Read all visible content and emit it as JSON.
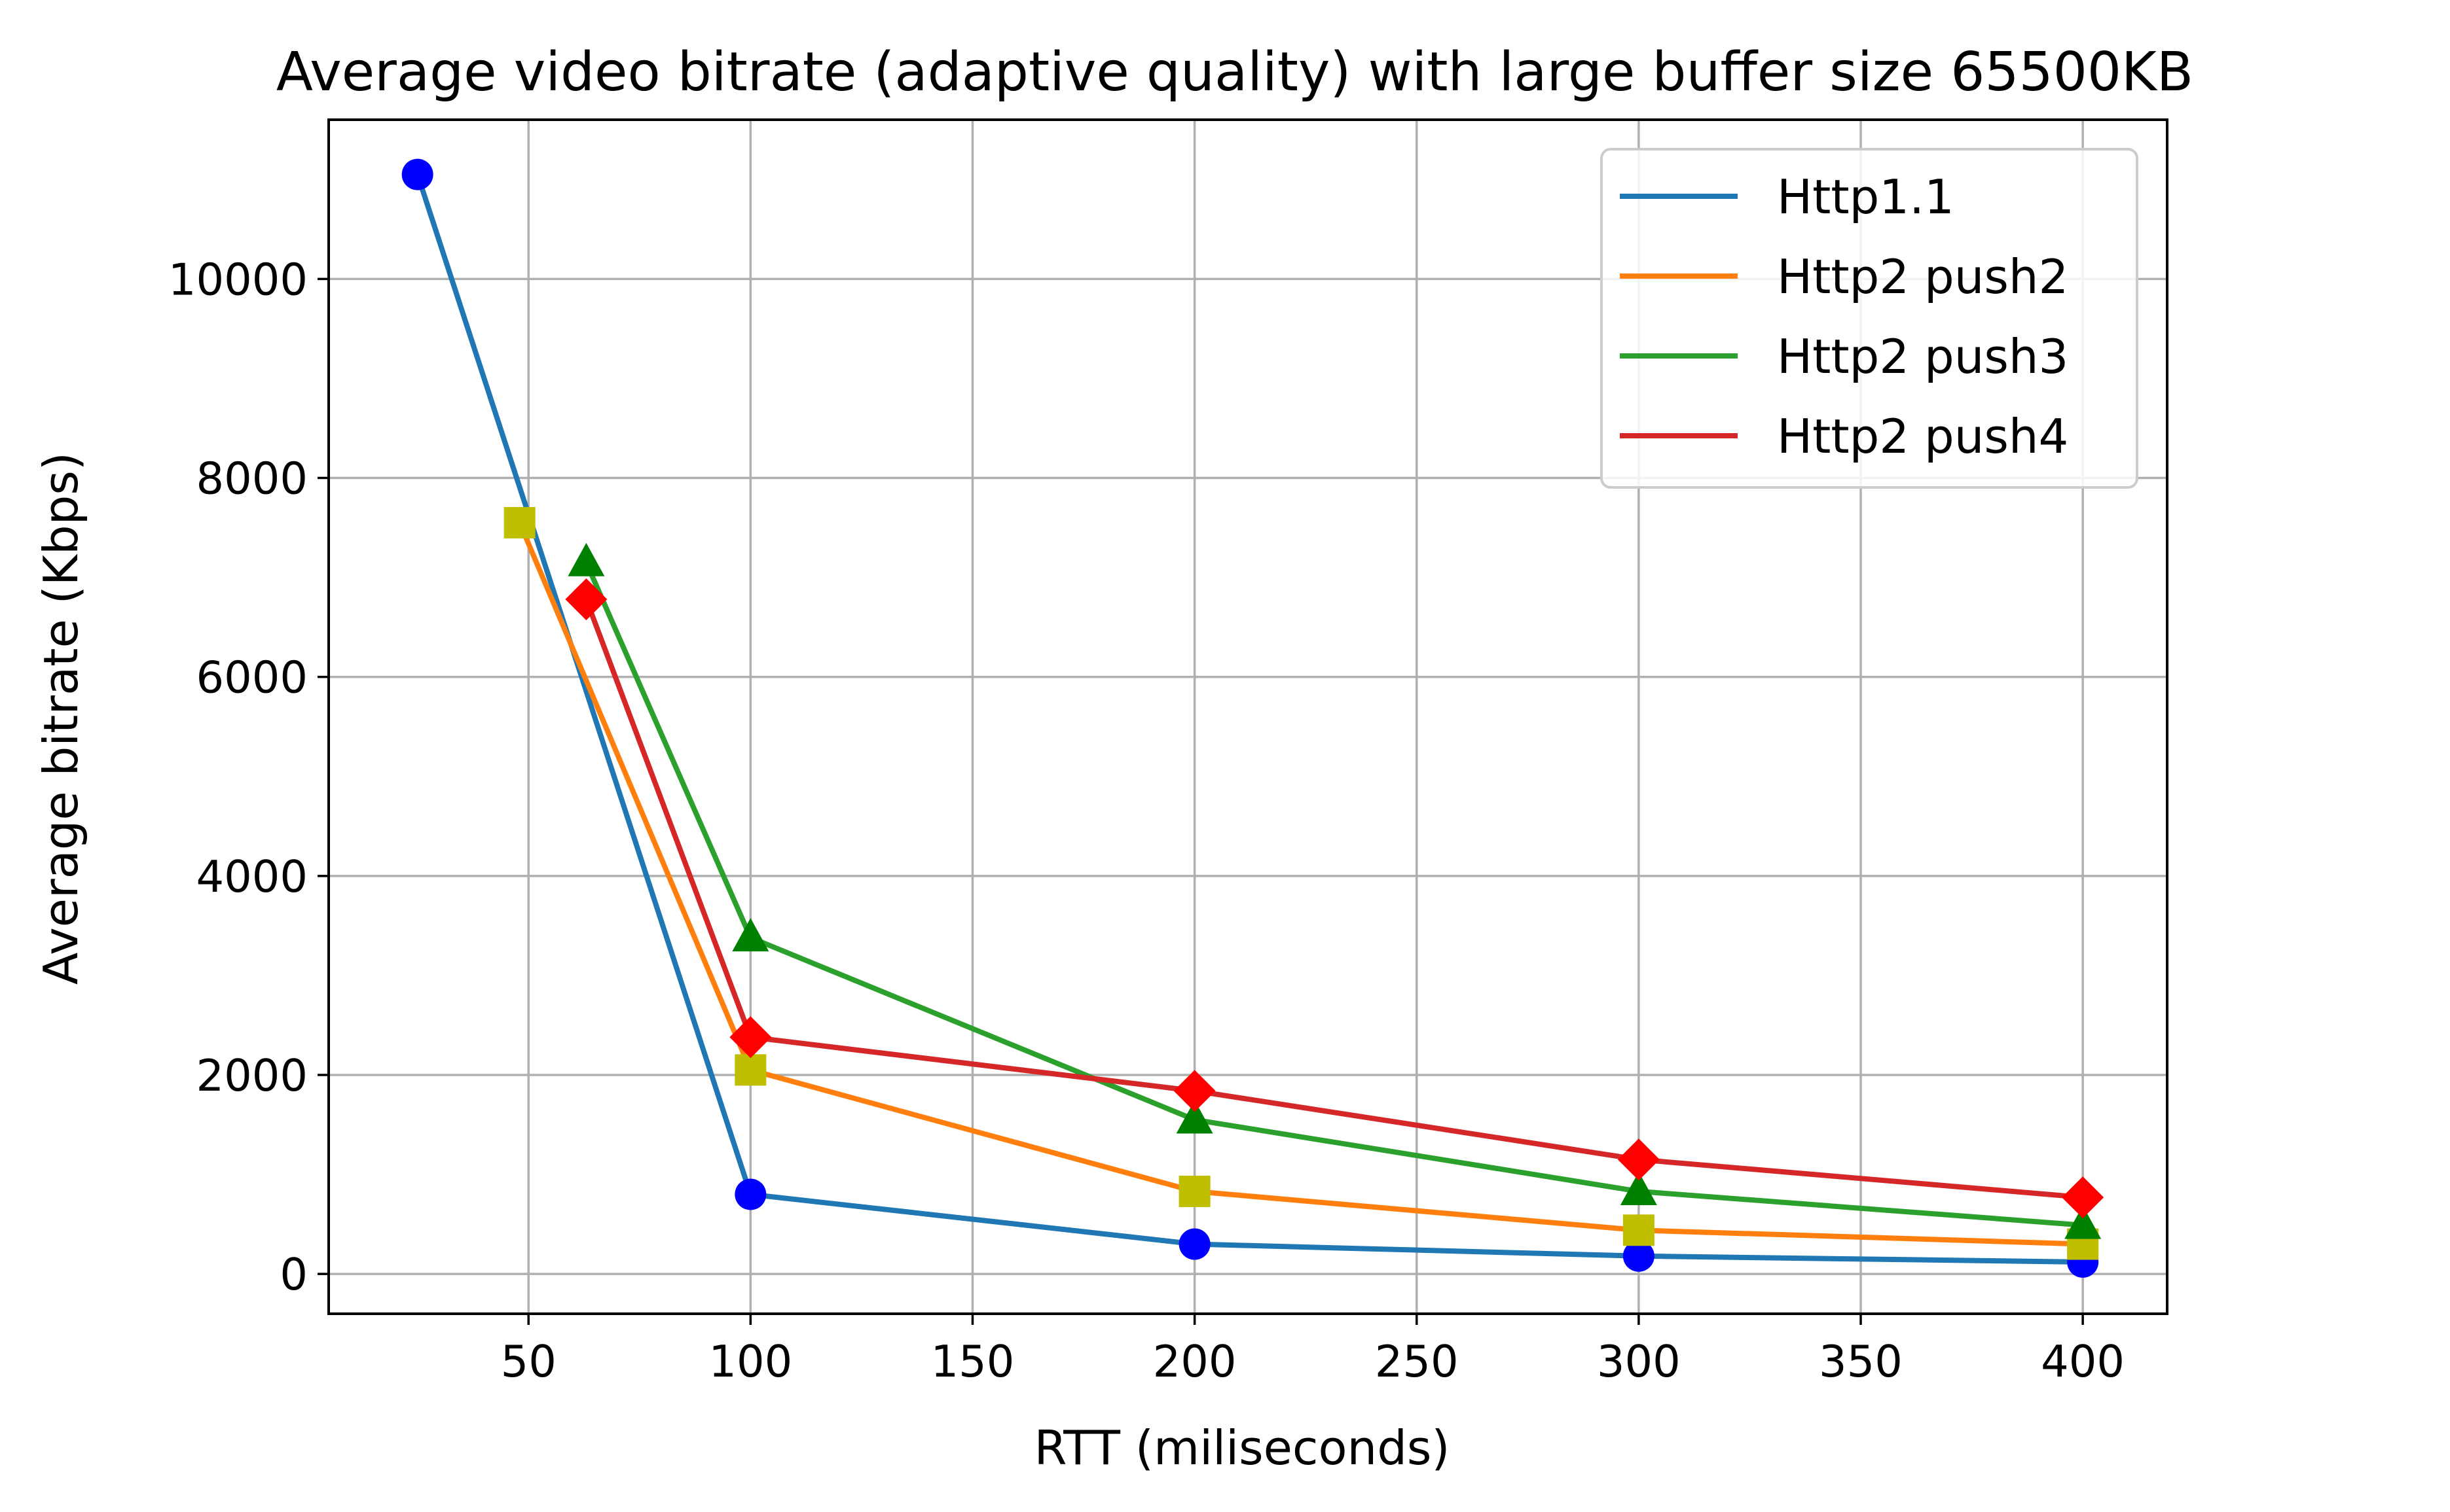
{
  "chart_data": {
    "type": "line",
    "title": "Average video bitrate (adaptive quality) with large buffer size 65500KB",
    "xlabel": "RTT (miliseconds)",
    "ylabel": "Average bitrate (Kbps)",
    "xlim": [
      5,
      419
    ],
    "ylim": [
      -400,
      11600
    ],
    "xticks": [
      50,
      100,
      150,
      200,
      250,
      300,
      350,
      400
    ],
    "yticks": [
      0,
      2000,
      4000,
      6000,
      8000,
      10000
    ],
    "grid": true,
    "legend_position": "top-right",
    "series": [
      {
        "name": "Http1.1",
        "color": "#1f77b4",
        "marker": "circle",
        "marker_color": "#0000ff",
        "x": [
          25,
          100,
          200,
          300,
          400
        ],
        "y": [
          11050,
          800,
          300,
          180,
          120
        ]
      },
      {
        "name": "Http2 push2",
        "color": "#ff7f0e",
        "marker": "square",
        "marker_color": "#bfbf00",
        "x": [
          48,
          100,
          200,
          300,
          400
        ],
        "y": [
          7550,
          2050,
          830,
          440,
          300
        ]
      },
      {
        "name": "Http2 push3",
        "color": "#2ca02c",
        "marker": "triangle",
        "marker_color": "#008000",
        "x": [
          63,
          100,
          200,
          300,
          400
        ],
        "y": [
          7150,
          3380,
          1550,
          830,
          490
        ]
      },
      {
        "name": "Http2 push4",
        "color": "#d62728",
        "marker": "diamond",
        "marker_color": "#ff0000",
        "x": [
          63,
          100,
          200,
          300,
          400
        ],
        "y": [
          6780,
          2380,
          1840,
          1150,
          770
        ]
      }
    ]
  }
}
